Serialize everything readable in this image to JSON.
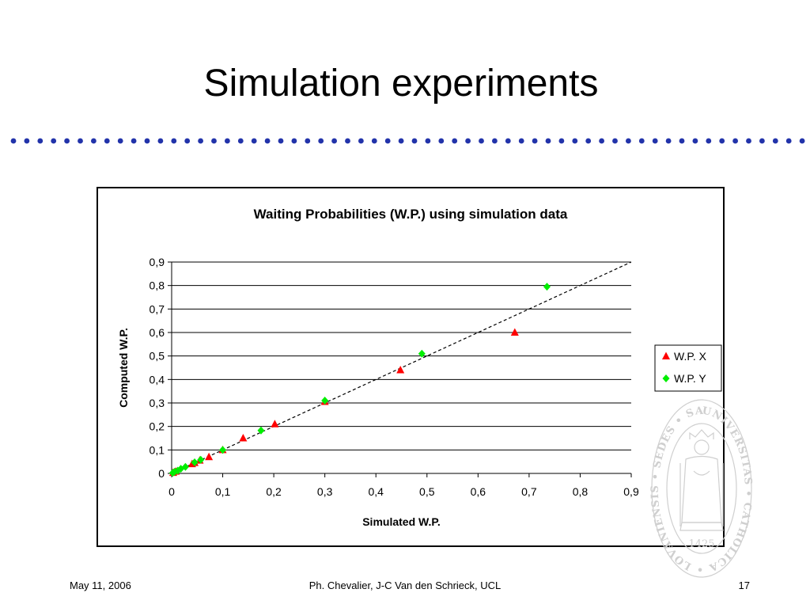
{
  "slide": {
    "title": "Simulation experiments",
    "footer_date": "May 11, 2006",
    "footer_authors": "Ph. Chevalier, J-C Van den Schrieck, UCL",
    "page_number": "17",
    "accent_color": "#2233aa"
  },
  "seal": {
    "ring_text": "UNIVERSITAS • CATHOLICA • LOVANIENSIS • SEDES • SAPIENTIAE •",
    "year": "1425"
  },
  "chart_data": {
    "type": "scatter",
    "title": "Waiting Probabilities (W.P.) using simulation data",
    "xlabel": "Simulated W.P.",
    "ylabel": "Computed W.P.",
    "xlim": [
      0,
      0.9
    ],
    "ylim": [
      0,
      0.9
    ],
    "x_ticks": [
      "0",
      "0,1",
      "0,2",
      "0,3",
      "0,4",
      "0,5",
      "0,6",
      "0,7",
      "0,8",
      "0,9"
    ],
    "y_ticks": [
      "0",
      "0,1",
      "0,2",
      "0,3",
      "0,4",
      "0,5",
      "0,6",
      "0,7",
      "0,8",
      "0,9"
    ],
    "grid": "horizontal",
    "legend_position": "right",
    "reference_line": {
      "style": "dashed",
      "from": [
        0,
        0
      ],
      "to": [
        0.9,
        0.9
      ]
    },
    "series": [
      {
        "name": "W.P. X",
        "marker": "triangle",
        "color": "#ff0000",
        "points": [
          [
            0.003,
            0.003
          ],
          [
            0.008,
            0.008
          ],
          [
            0.04,
            0.04
          ],
          [
            0.045,
            0.045
          ],
          [
            0.055,
            0.055
          ],
          [
            0.073,
            0.07
          ],
          [
            0.1,
            0.1
          ],
          [
            0.14,
            0.15
          ],
          [
            0.202,
            0.21
          ],
          [
            0.3,
            0.305
          ],
          [
            0.448,
            0.44
          ],
          [
            0.672,
            0.6
          ]
        ]
      },
      {
        "name": "W.P. Y",
        "marker": "diamond",
        "color": "#00ee00",
        "points": [
          [
            0.002,
            0.002
          ],
          [
            0.006,
            0.007
          ],
          [
            0.012,
            0.012
          ],
          [
            0.018,
            0.02
          ],
          [
            0.027,
            0.028
          ],
          [
            0.045,
            0.047
          ],
          [
            0.057,
            0.058
          ],
          [
            0.1,
            0.1
          ],
          [
            0.175,
            0.183
          ],
          [
            0.3,
            0.31
          ],
          [
            0.49,
            0.51
          ],
          [
            0.735,
            0.795
          ]
        ]
      }
    ]
  }
}
